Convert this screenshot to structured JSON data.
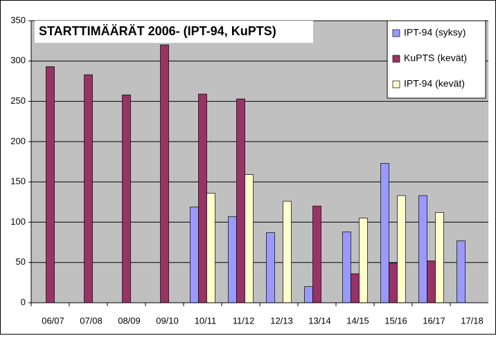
{
  "chart_data": {
    "type": "bar",
    "title": "STARTTIMÄÄRÄT 2006-  (IPT-94, KuPTS)",
    "categories": [
      "06/07",
      "07/08",
      "08/09",
      "09/10",
      "10/11",
      "11/12",
      "12/13",
      "13/14",
      "14/15",
      "15/16",
      "16/17",
      "17/18"
    ],
    "series": [
      {
        "name": "IPT-94 (syksy)",
        "color": "#9999ff",
        "values": [
          null,
          null,
          null,
          null,
          119,
          107,
          87,
          20,
          88,
          173,
          133,
          77
        ]
      },
      {
        "name": "KuPTS (kevät)",
        "color": "#993366",
        "values": [
          293,
          283,
          258,
          320,
          259,
          253,
          null,
          120,
          36,
          49,
          52,
          null
        ]
      },
      {
        "name": "IPT-94 (kevät)",
        "color": "#ffffcc",
        "values": [
          null,
          null,
          null,
          null,
          136,
          159,
          126,
          null,
          105,
          133,
          112,
          null
        ]
      }
    ],
    "ylim": [
      0,
      350
    ],
    "yticks": [
      0,
      50,
      100,
      150,
      200,
      250,
      300,
      350
    ],
    "grid": true,
    "legend": "upper right"
  }
}
